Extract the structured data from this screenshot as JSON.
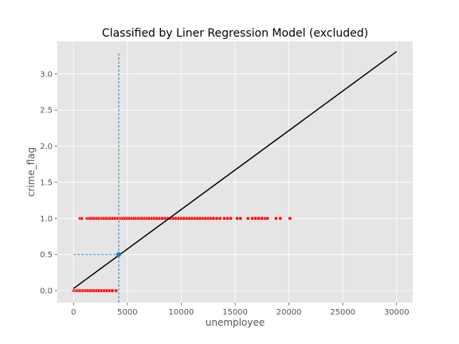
{
  "chart_data": {
    "type": "scatter",
    "title": "Classified by Liner Regression Model (excluded)",
    "xlabel": "unemployee",
    "ylabel": "crime_flag",
    "xlim": [
      -1500,
      31500
    ],
    "ylim": [
      -0.165,
      3.45
    ],
    "xticks": [
      0,
      5000,
      10000,
      15000,
      20000,
      25000,
      30000
    ],
    "yticks": [
      0.0,
      0.5,
      1.0,
      1.5,
      2.0,
      2.5,
      3.0
    ],
    "grid": true,
    "colors": {
      "background": "#e5e5e5",
      "grid": "#ffffff",
      "points": "#ff0000",
      "regression_line": "#000000",
      "threshold_marker": "#1f77b4"
    },
    "series": [
      {
        "kind": "scatter",
        "y": 0,
        "x": [
          0,
          100,
          200,
          300,
          450,
          600,
          750,
          900,
          1050,
          1200,
          1350,
          1550,
          1750,
          1950,
          2150,
          2350,
          2600,
          2850,
          3100,
          3350,
          3600,
          3950
        ]
      },
      {
        "kind": "scatter",
        "y": 1,
        "x": [
          600,
          750,
          1250,
          1400,
          1550,
          1750,
          1950,
          2150,
          2350,
          2550,
          2700,
          2850,
          3050,
          3250,
          3450,
          3650,
          3850,
          4100,
          4300,
          4450,
          4600,
          4800,
          5000,
          5200,
          5400,
          5600,
          5800,
          6000,
          6200,
          6400,
          6600,
          6800,
          7000,
          7250,
          7500,
          7750,
          8000,
          8250,
          8500,
          8750,
          9000,
          9250,
          9500,
          9750,
          10000,
          10250,
          10500,
          10750,
          11000,
          11250,
          11500,
          11750,
          12000,
          12250,
          12500,
          12750,
          13000,
          13300,
          13600,
          14000,
          14300,
          14600,
          15200,
          15500,
          16200,
          16600,
          16900,
          17200,
          17500,
          17800,
          18000,
          18800,
          19200,
          20100
        ]
      },
      {
        "kind": "line",
        "x": [
          0,
          30000
        ],
        "y": [
          0.03,
          3.31
        ]
      }
    ],
    "threshold": {
      "x": 4200,
      "y": 0.5,
      "ymax": 3.3
    }
  }
}
